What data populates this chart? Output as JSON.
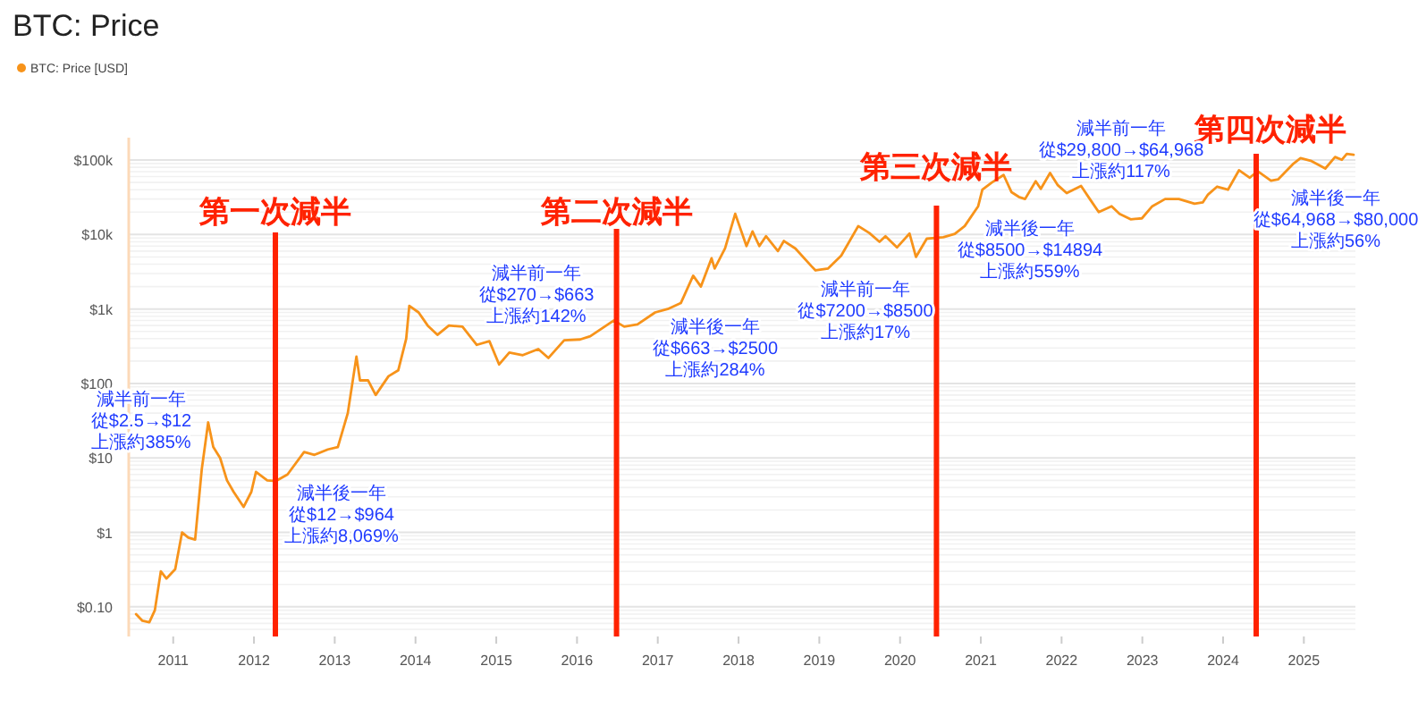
{
  "chart_data": {
    "type": "line",
    "title": "BTC: Price",
    "legend": "top left",
    "grid": "y",
    "log": "y",
    "line_style": "solid",
    "marker": "none",
    "xlim": [
      "2010-06-14",
      "2025-08-22"
    ],
    "xticks": [
      {
        "value": "2011-01-01",
        "label": "2011"
      },
      {
        "value": "2012-01-01",
        "label": "2012"
      },
      {
        "value": "2013-01-01",
        "label": "2013"
      },
      {
        "value": "2014-01-01",
        "label": "2014"
      },
      {
        "value": "2015-01-01",
        "label": "2015"
      },
      {
        "value": "2016-01-01",
        "label": "2016"
      },
      {
        "value": "2017-01-01",
        "label": "2017"
      },
      {
        "value": "2018-01-01",
        "label": "2018"
      },
      {
        "value": "2019-01-01",
        "label": "2019"
      },
      {
        "value": "2020-01-01",
        "label": "2020"
      },
      {
        "value": "2021-01-01",
        "label": "2021"
      },
      {
        "value": "2022-01-01",
        "label": "2022"
      },
      {
        "value": "2023-01-01",
        "label": "2023"
      },
      {
        "value": "2024-01-01",
        "label": "2024"
      },
      {
        "value": "2025-01-01",
        "label": "2025"
      }
    ],
    "ylim": [
      0.04,
      200000
    ],
    "yticks": [
      {
        "value": 0.1,
        "label": "$0.10"
      },
      {
        "value": 1,
        "label": "$1"
      },
      {
        "value": 10,
        "label": "$10"
      },
      {
        "value": 100,
        "label": "$100"
      },
      {
        "value": 1000,
        "label": "$1k"
      },
      {
        "value": 10000,
        "label": "$10k"
      },
      {
        "value": 100000,
        "label": "$100k"
      }
    ],
    "series": [
      {
        "name": "BTC: Price [USD]",
        "color": "#f7931a",
        "x": [
          "2010-07-17",
          "2010-08-15",
          "2010-09-15",
          "2010-10-10",
          "2010-11-06",
          "2010-12-01",
          "2011-01-10",
          "2011-02-10",
          "2011-03-10",
          "2011-04-10",
          "2011-05-10",
          "2011-06-08",
          "2011-07-01",
          "2011-08-01",
          "2011-09-01",
          "2011-10-01",
          "2011-11-15",
          "2011-12-20",
          "2012-01-10",
          "2012-03-01",
          "2012-04-10",
          "2012-06-01",
          "2012-08-15",
          "2012-10-01",
          "2012-12-01",
          "2013-01-15",
          "2013-03-01",
          "2013-04-09",
          "2013-04-25",
          "2013-06-01",
          "2013-07-05",
          "2013-09-01",
          "2013-10-15",
          "2013-11-20",
          "2013-12-04",
          "2014-01-15",
          "2014-02-25",
          "2014-04-10",
          "2014-06-01",
          "2014-08-01",
          "2014-10-05",
          "2014-12-01",
          "2015-01-14",
          "2015-03-01",
          "2015-05-01",
          "2015-07-10",
          "2015-08-25",
          "2015-11-04",
          "2016-01-15",
          "2016-03-01",
          "2016-06-15",
          "2016-08-02",
          "2016-10-01",
          "2016-12-20",
          "2017-02-15",
          "2017-04-15",
          "2017-06-10",
          "2017-07-15",
          "2017-09-01",
          "2017-09-15",
          "2017-11-01",
          "2017-12-17",
          "2018-02-06",
          "2018-03-05",
          "2018-04-05",
          "2018-05-05",
          "2018-06-28",
          "2018-07-25",
          "2018-09-15",
          "2018-11-25",
          "2018-12-15",
          "2019-02-10",
          "2019-04-10",
          "2019-06-26",
          "2019-08-15",
          "2019-09-30",
          "2019-10-27",
          "2019-12-18",
          "2020-02-13",
          "2020-03-13",
          "2020-05-01",
          "2020-07-15",
          "2020-09-05",
          "2020-10-20",
          "2020-12-20",
          "2021-01-08",
          "2021-02-20",
          "2021-04-14",
          "2021-05-20",
          "2021-06-22",
          "2021-07-20",
          "2021-09-06",
          "2021-09-29",
          "2021-11-10",
          "2021-12-15",
          "2022-01-24",
          "2022-03-30",
          "2022-05-12",
          "2022-06-18",
          "2022-08-15",
          "2022-09-20",
          "2022-11-09",
          "2022-12-30",
          "2023-02-15",
          "2023-04-14",
          "2023-06-15",
          "2023-08-25",
          "2023-10-01",
          "2023-10-25",
          "2023-12-05",
          "2024-01-23",
          "2024-03-13",
          "2024-05-01",
          "2024-06-05",
          "2024-08-05",
          "2024-09-06",
          "2024-11-12",
          "2024-12-17",
          "2025-02-01",
          "2025-04-08",
          "2025-05-22",
          "2025-06-22",
          "2025-07-14",
          "2025-08-14"
        ],
        "values": [
          0.08,
          0.065,
          0.062,
          0.09,
          0.3,
          0.24,
          0.32,
          1.0,
          0.85,
          0.8,
          7,
          30,
          14,
          10,
          5,
          3.5,
          2.2,
          3.5,
          6.5,
          5,
          4.9,
          6,
          12,
          11,
          13,
          14,
          40,
          230,
          110,
          110,
          70,
          125,
          150,
          400,
          1100,
          900,
          600,
          450,
          600,
          580,
          330,
          370,
          180,
          260,
          240,
          290,
          220,
          380,
          390,
          430,
          700,
          580,
          620,
          900,
          1000,
          1200,
          2800,
          2000,
          4800,
          3500,
          6500,
          19000,
          7000,
          11000,
          7000,
          9500,
          6000,
          8200,
          6500,
          3800,
          3300,
          3500,
          5200,
          13000,
          10500,
          8000,
          9500,
          6700,
          10300,
          5000,
          8800,
          9200,
          10200,
          13000,
          24000,
          40000,
          50000,
          63000,
          37000,
          32000,
          30000,
          52000,
          41000,
          67000,
          46000,
          36000,
          45000,
          29000,
          20000,
          24000,
          19000,
          16000,
          16500,
          24000,
          30000,
          30000,
          26000,
          27000,
          34500,
          44000,
          40000,
          73000,
          58000,
          71000,
          53000,
          55000,
          88000,
          106000,
          98000,
          77000,
          110000,
          101000,
          121000,
          118000
        ]
      }
    ],
    "ref_lines": [
      {
        "axis": "x",
        "value": "2012-04-07",
        "label": "第一次減半",
        "color": "#ff2200"
      },
      {
        "axis": "x",
        "value": "2016-06-28",
        "label": "第二次減半",
        "color": "#ff2200"
      },
      {
        "axis": "x",
        "value": "2020-06-14",
        "label": "第三次減半",
        "color": "#ff2200"
      },
      {
        "axis": "x",
        "value": "2024-05-30",
        "label": "第四次減半",
        "color": "#ff2200"
      }
    ],
    "annotations": [
      "減半前一年",
      "從$2.5→$12",
      "上漲約385%",
      "減半後一年",
      "從$12→$964",
      "上漲約8,069%",
      "減半前一年",
      "從$270→$663",
      "上漲約142%",
      "減半後一年",
      "從$663→$2500",
      "上漲約284%",
      "減半前一年",
      "從$7200→$8500",
      "上漲約17%",
      "減半後一年",
      "從$8500→$14894",
      "上漲約559%",
      "減半前一年",
      "從$29,800→$64,968",
      "上漲約117%",
      "減半後一年",
      "從$64,968→$80,000",
      "上漲約56%"
    ]
  }
}
